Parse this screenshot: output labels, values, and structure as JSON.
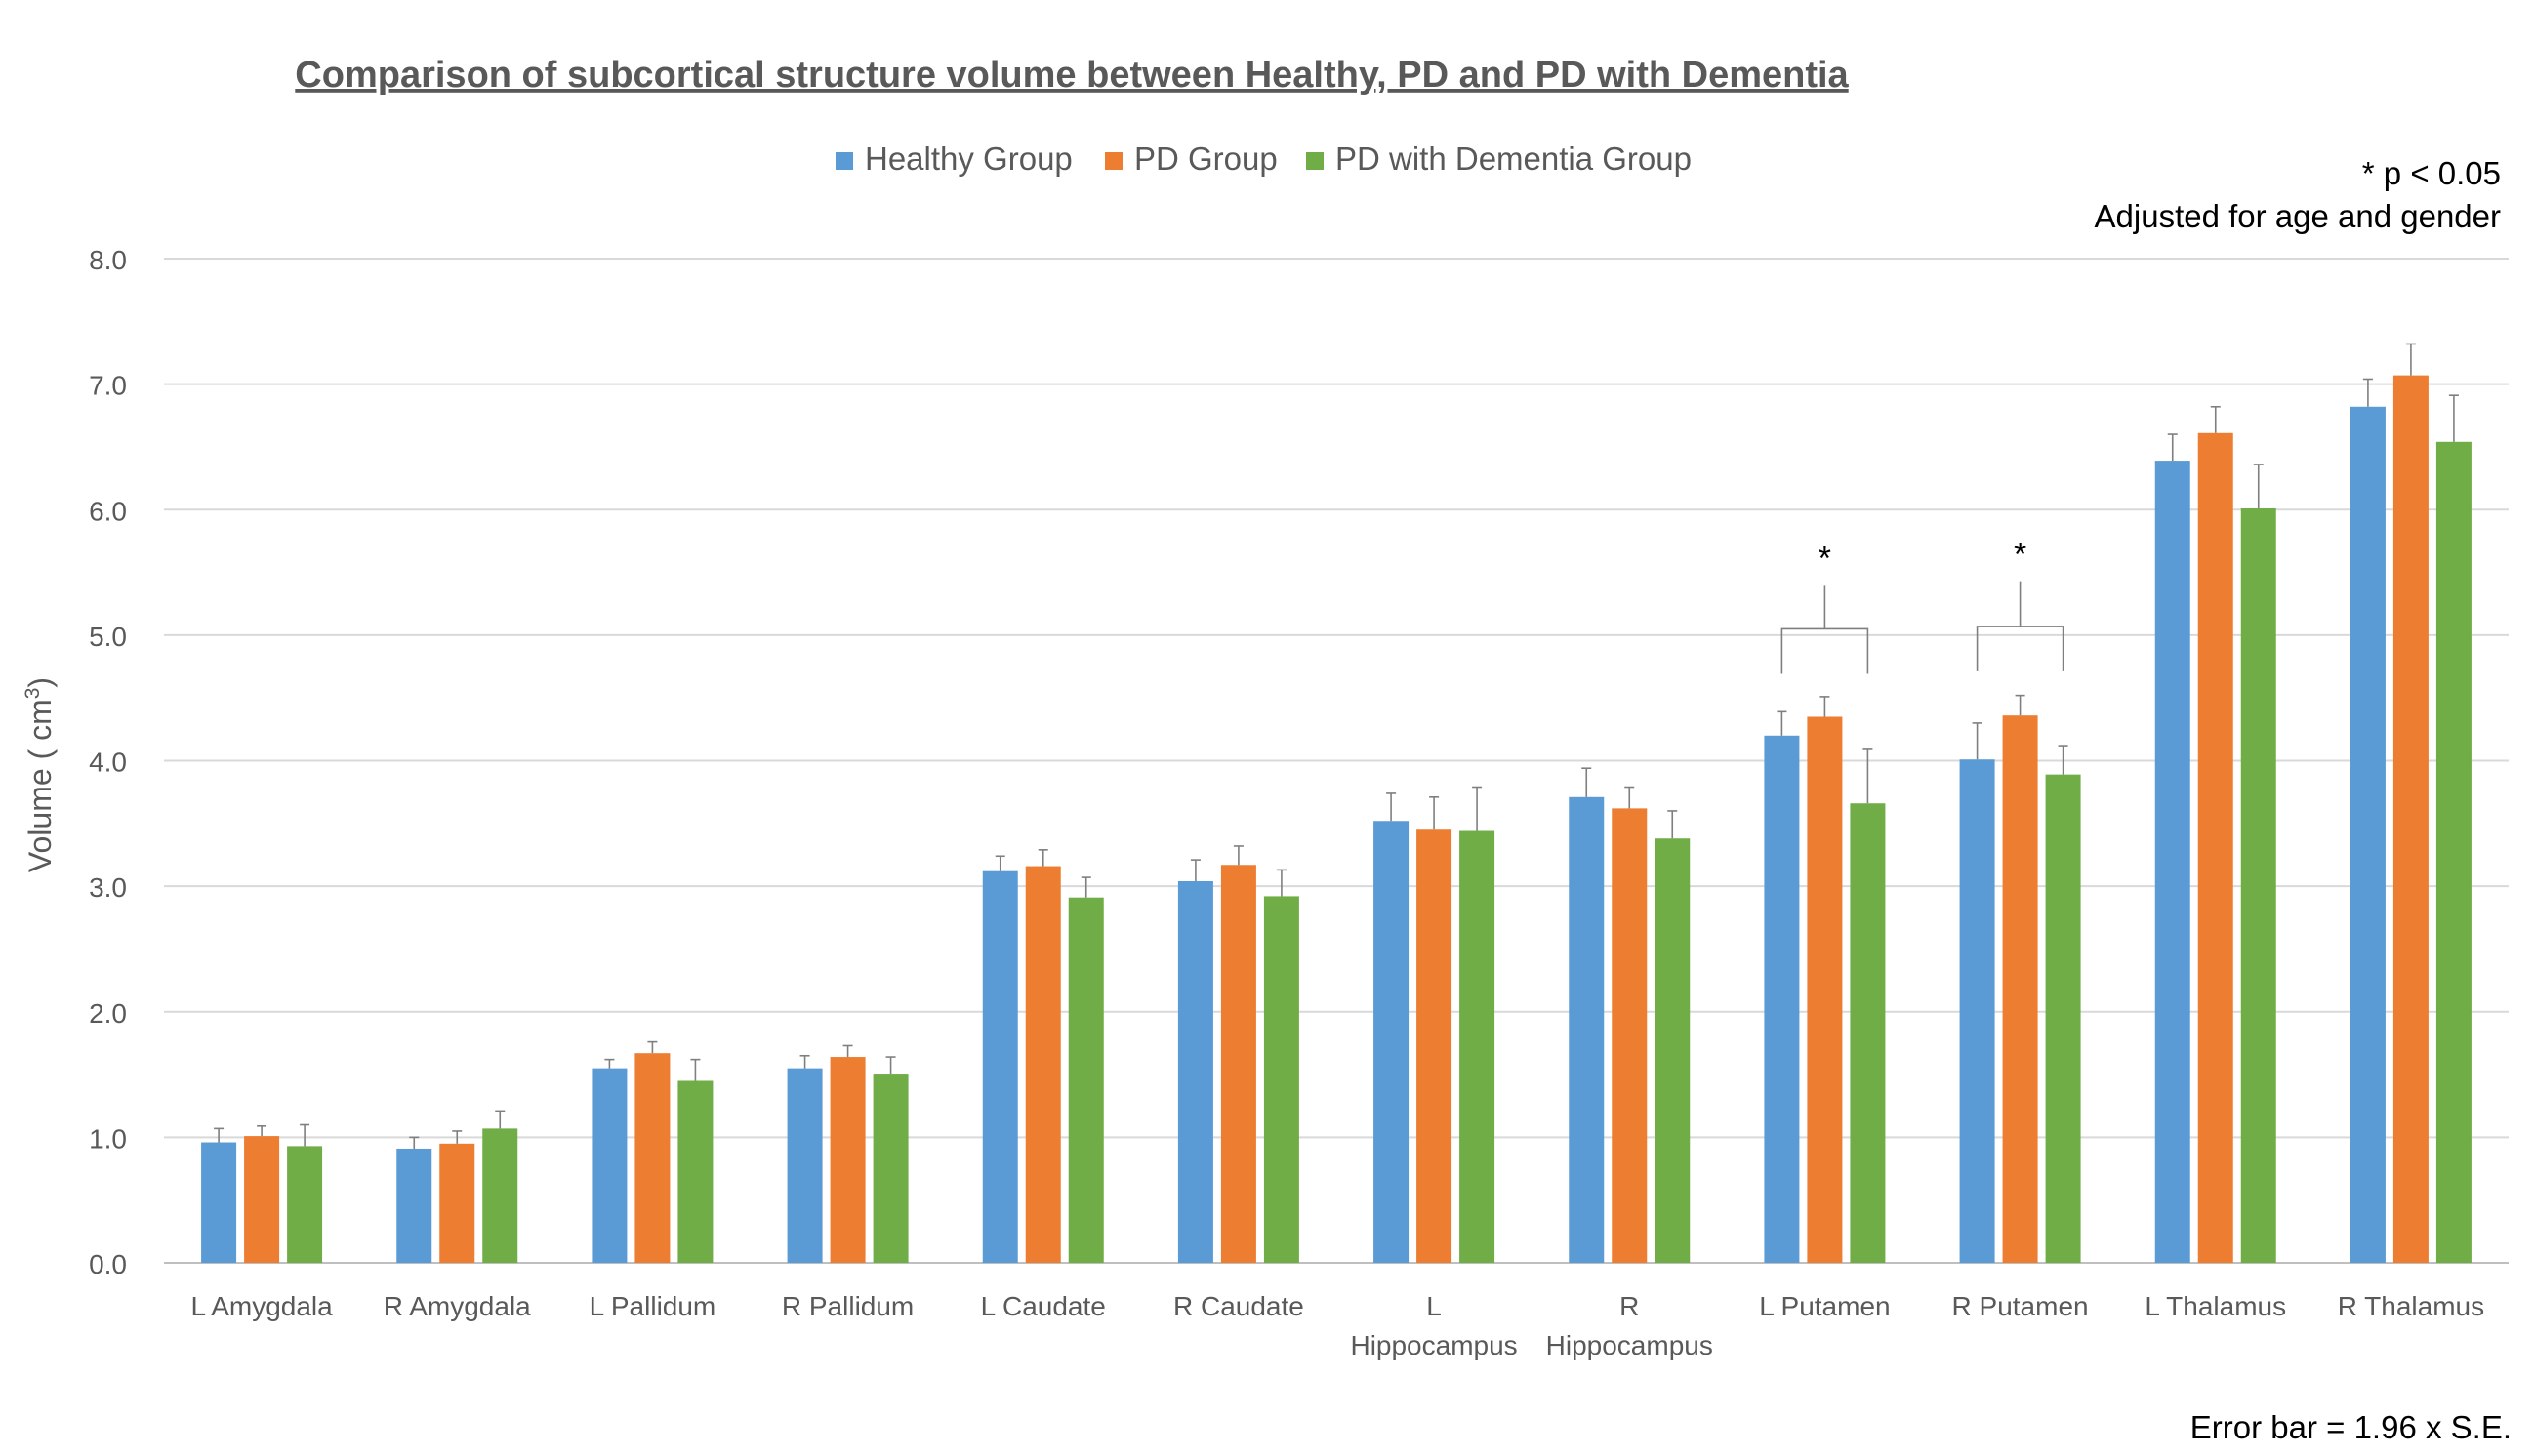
{
  "chart_data": {
    "type": "bar",
    "title": "Comparison of subcortical structure volume between Healthy, PD and PD with Dementia",
    "ylabel": "Volume ( cm",
    "ylabel_sup": "3",
    "ylabel_end": ")",
    "xlabel": "",
    "ylim": [
      0,
      8
    ],
    "yticks": [
      0,
      1,
      2,
      3,
      4,
      5,
      6,
      7,
      8
    ],
    "ytick_labels": [
      "0.0",
      "1.0",
      "2.0",
      "3.0",
      "4.0",
      "5.0",
      "6.0",
      "7.0",
      "8.0"
    ],
    "grid": true,
    "legend_position": "top",
    "categories": [
      [
        "L Amygdala"
      ],
      [
        "R Amygdala"
      ],
      [
        "L Pallidum"
      ],
      [
        "R Pallidum"
      ],
      [
        "L Caudate"
      ],
      [
        "R Caudate"
      ],
      [
        "L",
        "Hippocampus"
      ],
      [
        "R",
        "Hippocampus"
      ],
      [
        "L Putamen"
      ],
      [
        "R Putamen"
      ],
      [
        "L Thalamus"
      ],
      [
        "R Thalamus"
      ]
    ],
    "series": [
      {
        "name": "Healthy Group",
        "color": "#5b9bd5",
        "values": [
          0.96,
          0.91,
          1.55,
          1.55,
          3.12,
          3.04,
          3.52,
          3.71,
          4.2,
          4.01,
          6.39,
          6.82
        ],
        "errors": [
          0.11,
          0.09,
          0.07,
          0.1,
          0.12,
          0.17,
          0.22,
          0.23,
          0.19,
          0.29,
          0.21,
          0.22
        ]
      },
      {
        "name": "PD Group",
        "color": "#ed7d31",
        "values": [
          1.01,
          0.95,
          1.67,
          1.64,
          3.16,
          3.17,
          3.45,
          3.62,
          4.35,
          4.36,
          6.61,
          7.07
        ],
        "errors": [
          0.08,
          0.1,
          0.09,
          0.09,
          0.13,
          0.15,
          0.26,
          0.17,
          0.16,
          0.16,
          0.21,
          0.25
        ]
      },
      {
        "name": "PD with Dementia Group",
        "color": "#70ad47",
        "values": [
          0.93,
          1.07,
          1.45,
          1.5,
          2.91,
          2.92,
          3.44,
          3.38,
          3.66,
          3.89,
          6.01,
          6.54
        ],
        "errors": [
          0.17,
          0.14,
          0.17,
          0.14,
          0.16,
          0.21,
          0.35,
          0.22,
          0.43,
          0.23,
          0.35,
          0.37
        ]
      }
    ],
    "significance": [
      {
        "category_index": 8,
        "marker": "*",
        "bracket_y": 5.05,
        "star_y": 5.4
      },
      {
        "category_index": 9,
        "marker": "*",
        "bracket_y": 5.07,
        "star_y": 5.43
      }
    ],
    "annotations": {
      "pvalue": "* p < 0.05",
      "adjusted": "Adjusted for age and gender",
      "errorbar": "Error bar = 1.96 x S.E."
    }
  }
}
